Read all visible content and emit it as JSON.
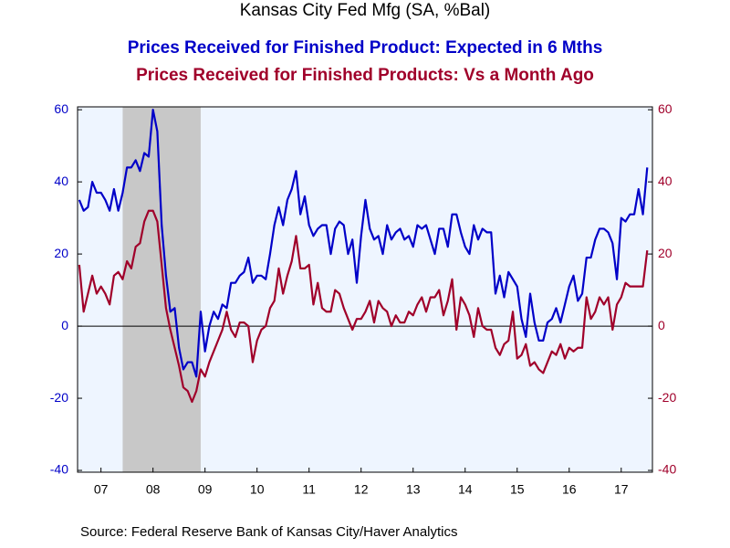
{
  "chart_data": {
    "type": "line",
    "title": "Kansas City Fed Mfg (SA, %Bal)",
    "source": "Source:  Federal Reserve Bank of Kansas City/Haver Analytics",
    "x": [
      2007.083,
      2007.167,
      2007.25,
      2007.333,
      2007.417,
      2007.5,
      2007.583,
      2007.667,
      2007.75,
      2007.833,
      2007.917,
      2008,
      2008.083,
      2008.167,
      2008.25,
      2008.333,
      2008.417,
      2008.5,
      2008.583,
      2008.667,
      2008.75,
      2008.833,
      2008.917,
      2009,
      2009.083,
      2009.167,
      2009.25,
      2009.333,
      2009.417,
      2009.5,
      2009.583,
      2009.667,
      2009.75,
      2009.833,
      2009.917,
      2010,
      2010.083,
      2010.167,
      2010.25,
      2010.333,
      2010.417,
      2010.5,
      2010.583,
      2010.667,
      2010.75,
      2010.833,
      2010.917,
      2011,
      2011.083,
      2011.167,
      2011.25,
      2011.333,
      2011.417,
      2011.5,
      2011.583,
      2011.667,
      2011.75,
      2011.833,
      2011.917,
      2012,
      2012.083,
      2012.167,
      2012.25,
      2012.333,
      2012.417,
      2012.5,
      2012.583,
      2012.667,
      2012.75,
      2012.833,
      2012.917,
      2013,
      2013.083,
      2013.167,
      2013.25,
      2013.333,
      2013.417,
      2013.5,
      2013.583,
      2013.667,
      2013.75,
      2013.833,
      2013.917,
      2014,
      2014.083,
      2014.167,
      2014.25,
      2014.333,
      2014.417,
      2014.5,
      2014.583,
      2014.667,
      2014.75,
      2014.833,
      2014.917,
      2015,
      2015.083,
      2015.167,
      2015.25,
      2015.333,
      2015.417,
      2015.5,
      2015.583,
      2015.667,
      2015.75,
      2015.833,
      2015.917,
      2016,
      2016.083,
      2016.167,
      2016.25,
      2016.333,
      2016.417,
      2016.5,
      2016.583,
      2016.667,
      2016.75,
      2016.833,
      2016.917,
      2017,
      2017.083,
      2017.167,
      2017.25,
      2017.333,
      2017.417,
      2017.5,
      2017.583,
      2017.667,
      2017.75,
      2017.833,
      2017.917,
      2018
    ],
    "series": [
      {
        "name": "Prices Received for Finished Product: Expected in 6 Mths",
        "color": "#0000c8",
        "values": [
          35,
          32,
          33,
          40,
          37,
          37,
          35,
          32,
          38,
          32,
          37,
          44,
          44,
          46,
          43,
          48,
          47,
          60,
          54,
          28,
          14,
          4,
          5,
          -6,
          -12,
          -10,
          -10,
          -14,
          4,
          -7,
          0,
          4,
          2,
          6,
          5,
          12,
          12,
          14,
          15,
          19,
          12,
          14,
          14,
          13,
          20,
          28,
          33,
          28,
          35,
          38,
          43,
          31,
          36,
          28,
          25,
          27,
          28,
          28,
          20,
          27,
          29,
          28,
          20,
          24,
          12,
          25,
          35,
          27,
          24,
          25,
          20,
          28,
          24,
          26,
          27,
          24,
          25,
          22,
          28,
          27,
          28,
          24,
          20,
          27,
          27,
          22,
          31,
          31,
          26,
          22,
          20,
          28,
          24,
          27,
          26,
          26,
          9,
          14,
          8,
          15,
          13,
          11,
          2,
          -3,
          9,
          1,
          -4,
          -4,
          1,
          2,
          5,
          1,
          6,
          11,
          14,
          7,
          9,
          19,
          19,
          24,
          27,
          27,
          26,
          23,
          13,
          30,
          29,
          31,
          31,
          38,
          31,
          44
        ]
      },
      {
        "name": "Prices Received for Finished Products: Vs a Month Ago",
        "color": "#a0002a",
        "axis": "y2",
        "values": [
          17,
          4,
          9,
          14,
          9,
          11,
          9,
          6,
          14,
          15,
          13,
          18,
          16,
          22,
          23,
          29,
          32,
          32,
          29,
          17,
          5,
          -1,
          -6,
          -11,
          -17,
          -18,
          -21,
          -18,
          -12,
          -14,
          -10,
          -7,
          -4,
          -1,
          4,
          -1,
          -3,
          1,
          1,
          0,
          -10,
          -4,
          -1,
          0,
          5,
          7,
          16,
          9,
          14,
          18,
          25,
          16,
          16,
          17,
          6,
          12,
          5,
          4,
          4,
          10,
          9,
          5,
          2,
          -1,
          2,
          2,
          4,
          7,
          1,
          7,
          5,
          4,
          0,
          3,
          1,
          1,
          4,
          3,
          6,
          8,
          4,
          8,
          8,
          10,
          3,
          7,
          13,
          -1,
          8,
          6,
          3,
          -3,
          5,
          0,
          -1,
          -1,
          -6,
          -8,
          -5,
          -4,
          4,
          -9,
          -8,
          -5,
          -11,
          -10,
          -12,
          -13,
          -10,
          -7,
          -8,
          -5,
          -9,
          -6,
          -7,
          -6,
          -6,
          8,
          2,
          4,
          8,
          6,
          8,
          -1,
          6,
          8,
          12,
          11,
          11,
          11,
          11,
          21
        ]
      }
    ],
    "recessions": [
      [
        2007.917,
        2009.417
      ]
    ],
    "xlim": [
      2007.05,
      2018.1
    ],
    "xticks": [
      {
        "value": 2007.5,
        "label": "07"
      },
      {
        "value": 2008.5,
        "label": "08"
      },
      {
        "value": 2009.5,
        "label": "09"
      },
      {
        "value": 2010.5,
        "label": "10"
      },
      {
        "value": 2011.5,
        "label": "11"
      },
      {
        "value": 2012.5,
        "label": "12"
      },
      {
        "value": 2013.5,
        "label": "13"
      },
      {
        "value": 2014.5,
        "label": "14"
      },
      {
        "value": 2015.5,
        "label": "15"
      },
      {
        "value": 2016.5,
        "label": "16"
      },
      {
        "value": 2017.5,
        "label": "17"
      }
    ],
    "ylim": [
      -40.5,
      60.8
    ],
    "yticks": [
      -40,
      -20,
      0,
      20,
      40,
      60
    ],
    "y2lim": [
      -40.5,
      60.8
    ],
    "y2ticks": [
      -40,
      -20,
      0,
      20,
      40,
      60
    ]
  }
}
